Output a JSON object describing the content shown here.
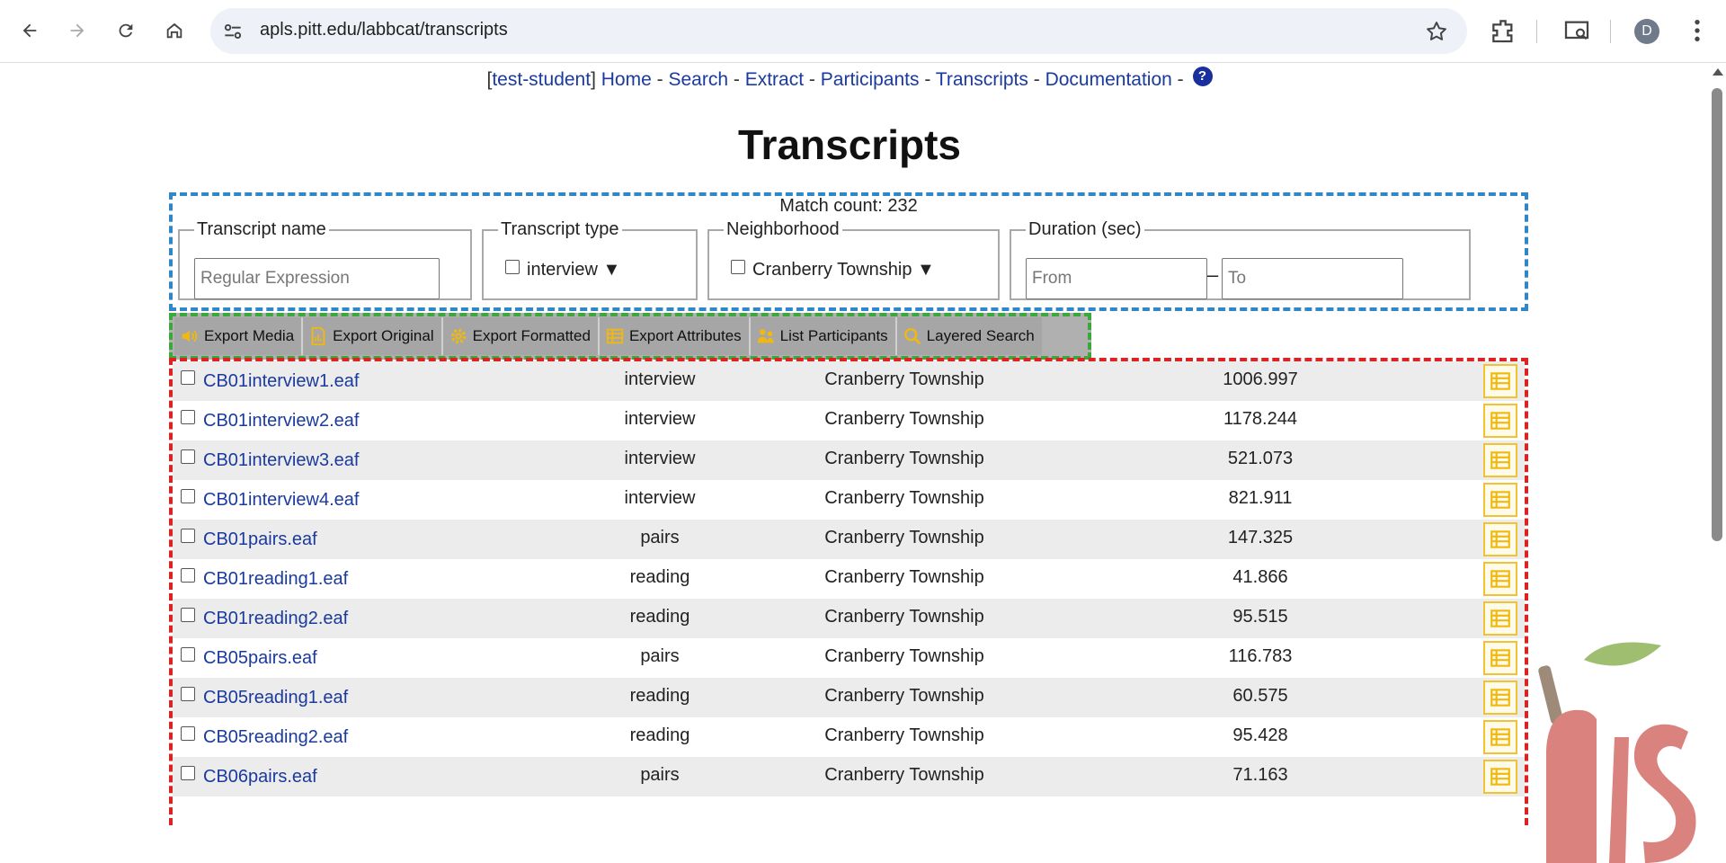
{
  "browser": {
    "url": "apls.pitt.edu/labbcat/transcripts",
    "avatar_letter": "D"
  },
  "nav": {
    "bracket_open": "[",
    "user": "test-student",
    "bracket_close": "]",
    "links": [
      "Home",
      "Search",
      "Extract",
      "Participants",
      "Transcripts",
      "Documentation"
    ],
    "separator": "-",
    "help": "?"
  },
  "page": {
    "title": "Transcripts"
  },
  "filters": {
    "match_count": "Match count: 232",
    "transcript_name": {
      "legend": "Transcript name",
      "placeholder": "Regular Expression"
    },
    "transcript_type": {
      "legend": "Transcript type",
      "value": "interview ▼"
    },
    "neighborhood": {
      "legend": "Neighborhood",
      "value": "Cranberry Township ▼"
    },
    "duration": {
      "legend": "Duration (sec)",
      "from_placeholder": "From",
      "to_placeholder": "To"
    }
  },
  "toolbar": {
    "export_media": "Export Media",
    "export_original": "Export Original",
    "export_formatted": "Export Formatted",
    "export_attributes": "Export Attributes",
    "list_participants": "List Participants",
    "layered_search": "Layered Search"
  },
  "rows": [
    {
      "name": "CB01interview1.eaf",
      "type": "interview",
      "neighborhood": "Cranberry Township",
      "duration": "1006.997"
    },
    {
      "name": "CB01interview2.eaf",
      "type": "interview",
      "neighborhood": "Cranberry Township",
      "duration": "1178.244"
    },
    {
      "name": "CB01interview3.eaf",
      "type": "interview",
      "neighborhood": "Cranberry Township",
      "duration": "521.073"
    },
    {
      "name": "CB01interview4.eaf",
      "type": "interview",
      "neighborhood": "Cranberry Township",
      "duration": "821.911"
    },
    {
      "name": "CB01pairs.eaf",
      "type": "pairs",
      "neighborhood": "Cranberry Township",
      "duration": "147.325"
    },
    {
      "name": "CB01reading1.eaf",
      "type": "reading",
      "neighborhood": "Cranberry Township",
      "duration": "41.866"
    },
    {
      "name": "CB01reading2.eaf",
      "type": "reading",
      "neighborhood": "Cranberry Township",
      "duration": "95.515"
    },
    {
      "name": "CB05pairs.eaf",
      "type": "pairs",
      "neighborhood": "Cranberry Township",
      "duration": "116.783"
    },
    {
      "name": "CB05reading1.eaf",
      "type": "reading",
      "neighborhood": "Cranberry Township",
      "duration": "60.575"
    },
    {
      "name": "CB05reading2.eaf",
      "type": "reading",
      "neighborhood": "Cranberry Township",
      "duration": "95.428"
    },
    {
      "name": "CB06pairs.eaf",
      "type": "pairs",
      "neighborhood": "Cranberry Township",
      "duration": "71.163"
    }
  ],
  "colors": {
    "link": "#1a3a9e",
    "filter_border": "#2f86c8",
    "toolbar_border": "#3ca83c",
    "table_border": "#dd2222",
    "icon_accent": "#f1b90f"
  }
}
